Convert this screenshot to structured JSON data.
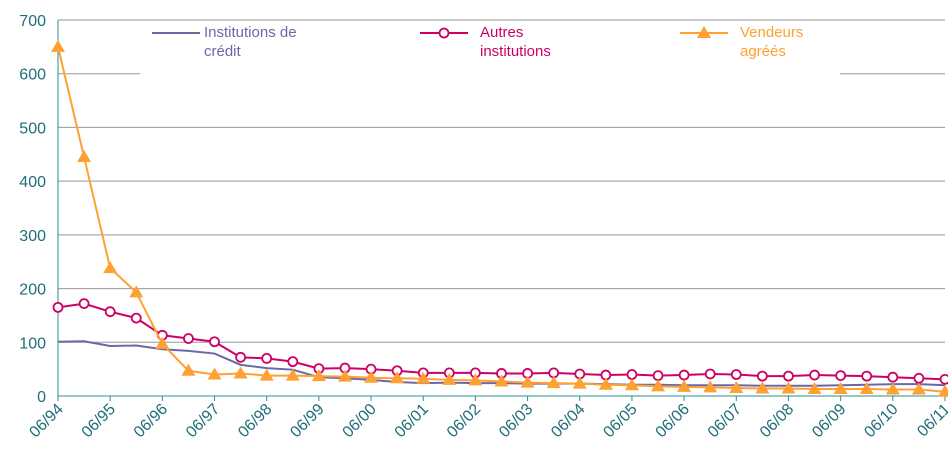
{
  "chart_data": {
    "type": "line",
    "categories": [
      "06/94",
      null,
      "06/95",
      null,
      "06/96",
      null,
      "06/97",
      null,
      "06/98",
      null,
      "06/99",
      null,
      "06/00",
      null,
      "06/01",
      null,
      "06/02",
      null,
      "06/03",
      null,
      "06/04",
      null,
      "06/05",
      null,
      "06/06",
      null,
      "06/07",
      null,
      "06/08",
      null,
      "06/09",
      null,
      "06/10",
      null,
      "06/11"
    ],
    "series": [
      {
        "name": "Institutions de crédit",
        "color": "#6b68a8",
        "marker": "none",
        "values": [
          101,
          102,
          93,
          94,
          87,
          84,
          79,
          58,
          52,
          49,
          35,
          33,
          30,
          26,
          24,
          25,
          24,
          24,
          23,
          23,
          23,
          22,
          21,
          21,
          20,
          20,
          20,
          19,
          19,
          19,
          20,
          21,
          22,
          22,
          20
        ]
      },
      {
        "name": "Autres institutions",
        "color": "#cc0066",
        "marker": "circle",
        "values": [
          165,
          172,
          157,
          145,
          113,
          107,
          101,
          72,
          70,
          64,
          51,
          52,
          50,
          47,
          43,
          43,
          43,
          42,
          42,
          43,
          41,
          39,
          40,
          38,
          39,
          41,
          40,
          37,
          37,
          39,
          38,
          37,
          35,
          33,
          31
        ]
      },
      {
        "name": "Vendeurs agréés",
        "color": "#ffa033",
        "marker": "triangle",
        "values": [
          650,
          445,
          238,
          193,
          97,
          47,
          40,
          42,
          38,
          38,
          37,
          36,
          34,
          33,
          32,
          30,
          29,
          27,
          25,
          24,
          23,
          21,
          20,
          18,
          17,
          16,
          15,
          14,
          14,
          13,
          13,
          13,
          12,
          12,
          8
        ]
      }
    ],
    "ylim": [
      0,
      700
    ],
    "yticks": [
      0,
      100,
      200,
      300,
      400,
      500,
      600,
      700
    ],
    "grid": true
  }
}
